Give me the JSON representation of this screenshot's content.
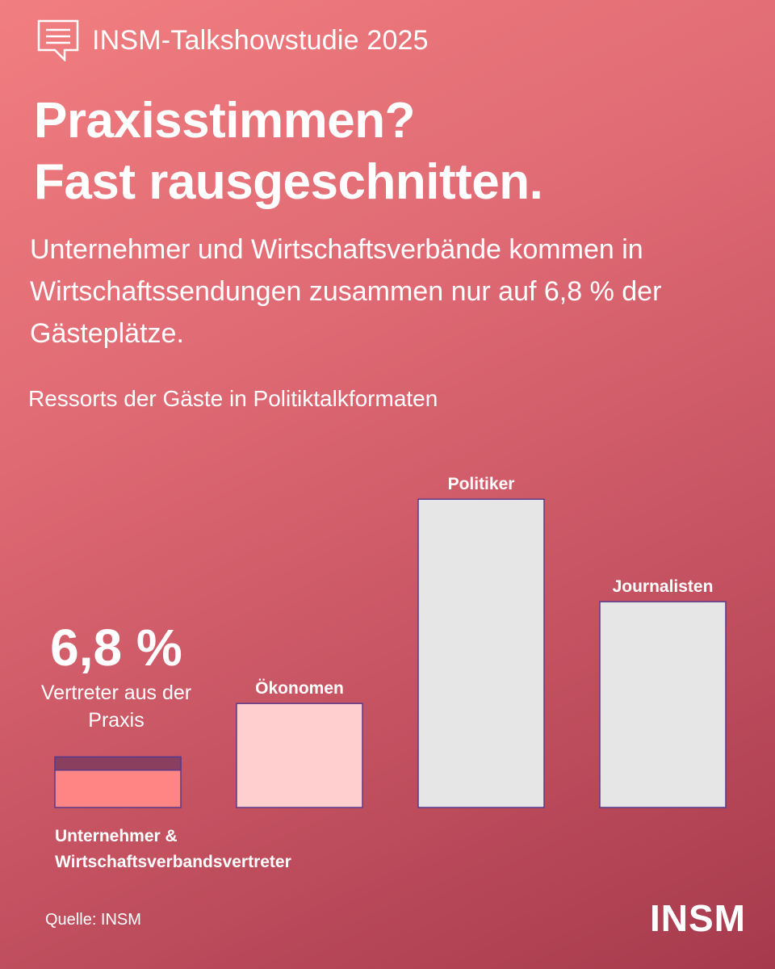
{
  "header": {
    "label": "INSM-Talkshowstudie 2025"
  },
  "headline": {
    "line1": "Praxisstimmen?",
    "line2": "Fast rausgeschnitten."
  },
  "subtitle": "Unternehmer und Wirtschaftsverbände kommen in Wirtschaftssendungen zusammen nur auf 6,8 % der Gästeplätze.",
  "chart_title": "Ressorts der Gäste in Politiktalkformaten",
  "source": "Quelle: INSM",
  "logo": "INSM",
  "colors": {
    "praxis": "#ff8585",
    "praxis_top": "#8a3f5e",
    "oekonomen": "#ffcfcf",
    "grey": "#e6e6e6",
    "outline": "#5b3a8c"
  },
  "chart_data": {
    "type": "bar",
    "title": "Ressorts der Gäste in Politiktalkformaten",
    "categories": [
      "Unternehmer & Wirtschaftsverbandsvertreter",
      "Ökonomen",
      "Politiker",
      "Journalisten"
    ],
    "values": [
      6.8,
      14.0,
      41.5,
      27.7
    ],
    "ylim": [
      0,
      45
    ],
    "highlight": {
      "value": "6,8 %",
      "label": "Vertreter aus der Praxis"
    },
    "grid": false,
    "legend": "none"
  }
}
